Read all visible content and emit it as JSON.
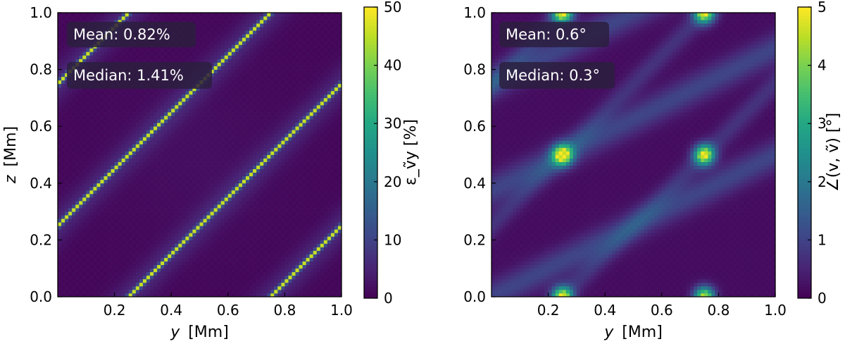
{
  "chart_data": [
    {
      "type": "heatmap",
      "title": "",
      "xlabel_var": "y",
      "xlabel_unit": "[Mm]",
      "ylabel_var": "z",
      "ylabel_unit": "[Mm]",
      "xlim": [
        0.0,
        1.0
      ],
      "ylim": [
        0.0,
        1.0
      ],
      "xticks": [
        "0.2",
        "0.4",
        "0.6",
        "0.8",
        "1.0"
      ],
      "xtick_values": [
        0.2,
        0.4,
        0.6,
        0.8,
        1.0
      ],
      "yticks": [
        "0.0",
        "0.2",
        "0.4",
        "0.6",
        "0.8",
        "1.0"
      ],
      "ytick_values": [
        0.0,
        0.2,
        0.4,
        0.6,
        0.8,
        1.0
      ],
      "colorbar": {
        "label": "ε_ṽy [%]",
        "vmin": 0,
        "vmax": 50,
        "ticks": [
          "0",
          "10",
          "20",
          "30",
          "40",
          "50"
        ],
        "tick_values": [
          0,
          10,
          20,
          30,
          40,
          50
        ],
        "colormap": "viridis"
      },
      "annotations": [
        "Mean: 0.82%",
        "Median: 1.41%"
      ],
      "field": "relative error of reconstructed v_y; high-error diagonal stripes where v_y crosses zero",
      "stripe_offsets": [
        -0.75,
        -0.25,
        0.25,
        0.75
      ],
      "stripe_peak_value": 50,
      "background_value": 2
    },
    {
      "type": "heatmap",
      "title": "",
      "xlabel_var": "y",
      "xlabel_unit": "[Mm]",
      "ylabel_var": "",
      "ylabel_unit": "",
      "xlim": [
        0.0,
        1.0
      ],
      "ylim": [
        0.0,
        1.0
      ],
      "xticks": [
        "0.2",
        "0.4",
        "0.6",
        "0.8",
        "1.0"
      ],
      "xtick_values": [
        0.2,
        0.4,
        0.6,
        0.8,
        1.0
      ],
      "yticks": [
        "0.0",
        "0.2",
        "0.4",
        "0.6",
        "0.8",
        "1.0"
      ],
      "ytick_values": [
        0.0,
        0.2,
        0.4,
        0.6,
        0.8,
        1.0
      ],
      "colorbar": {
        "label": "∠(v, ṽ) [°]",
        "vmin": 0,
        "vmax": 5,
        "ticks": [
          "0",
          "1",
          "2",
          "3",
          "4",
          "5"
        ],
        "tick_values": [
          0,
          1,
          2,
          3,
          4,
          5
        ],
        "colormap": "viridis"
      },
      "annotations": [
        "Mean: 0.6°",
        "Median: 0.3°"
      ],
      "field": "angle between true and reconstructed velocity; hot spots near (0.25,0), (0.25,0.5), (0.25,1), (0.75,0), (0.75,0.5), (0.75,1)",
      "hotspots": [
        [
          0.25,
          0.0
        ],
        [
          0.25,
          0.5
        ],
        [
          0.25,
          1.0
        ],
        [
          0.75,
          0.0
        ],
        [
          0.75,
          0.5
        ],
        [
          0.75,
          1.0
        ]
      ],
      "stripe_peak_value": 5,
      "background_value": 0.2
    }
  ]
}
